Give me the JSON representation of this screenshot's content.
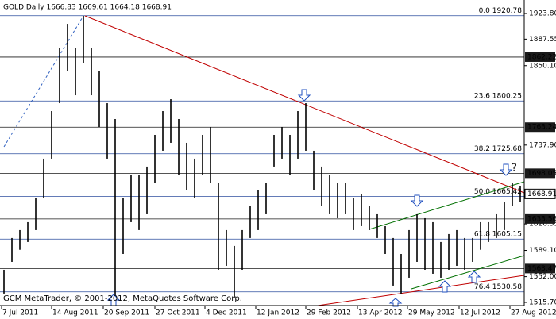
{
  "chart_data": {
    "type": "hlc_bars",
    "title": "GOLD,Daily  1666.83 1669.61 1664.18 1668.91",
    "footer": "GCM MetaTrader, © 2001-2012, MetaQuotes Software Corp.",
    "annotation": "?",
    "color": "#000000",
    "highs": [
      1561.7,
      1606.6,
      1617.8,
      1629,
      1662.6,
      1718.7,
      1785.9,
      1875.6,
      1909.2,
      1875.6,
      1920.4,
      1875.6,
      1842,
      1797.1,
      1774.7,
      1662.6,
      1696.2,
      1696.2,
      1707.5,
      1752.3,
      1785.9,
      1802.7,
      1774.7,
      1741.1,
      1718.7,
      1752.3,
      1763.5,
      1685,
      1617.8,
      1595.4,
      1617.8,
      1651.4,
      1673.8,
      1685,
      1752.3,
      1763.5,
      1752.3,
      1785.9,
      1797.1,
      1729.9,
      1707.5,
      1696.2,
      1685,
      1685,
      1662.6,
      1668.2,
      1651.4,
      1640.2,
      1623.4,
      1606.6,
      1584.1,
      1617.8,
      1640.2,
      1634.6,
      1629,
      1601,
      1612.2,
      1617.8,
      1606.6,
      1606.6,
      1629,
      1629,
      1640.2,
      1657,
      1685,
      1679.4
    ],
    "lows": [
      1528.1,
      1572.9,
      1590,
      1601,
      1617.8,
      1662.6,
      1718.7,
      1797.1,
      1842,
      1808.3,
      1853.2,
      1808.3,
      1763.5,
      1718.7,
      1522.5,
      1584.1,
      1629,
      1617.8,
      1640.2,
      1685,
      1729.9,
      1741.1,
      1696.2,
      1673.8,
      1662.6,
      1696.2,
      1685,
      1561.7,
      1567.3,
      1522.5,
      1561.7,
      1606.6,
      1617.8,
      1640.2,
      1707.5,
      1718.7,
      1696.2,
      1718.7,
      1729.9,
      1673.8,
      1651.4,
      1640.2,
      1634.6,
      1640.2,
      1617.8,
      1623.4,
      1617.8,
      1606.6,
      1584.1,
      1539.3,
      1528.1,
      1550.5,
      1572.9,
      1561.7,
      1556.1,
      1550.5,
      1561.7,
      1567.3,
      1561.7,
      1572.9,
      1590,
      1601,
      1606.6,
      1617.8,
      1651.4,
      1657
    ],
    "last": 1668.91,
    "levels": [
      1862.22,
      1763.24,
      1698.05,
      1633.56,
      1563.47
    ],
    "level_color": "#1a1a1a",
    "fib_color": "#2f4f9f",
    "fib_levels": [
      {
        "value": 1920.78,
        "label": "0.0 1920.78"
      },
      {
        "value": 1800.25,
        "label": "23.6 1800.25"
      },
      {
        "value": 1725.68,
        "label": "38.2 1725.68"
      },
      {
        "value": 1665.42,
        "label": "50.0 1665.42"
      },
      {
        "value": 1605.15,
        "label": "61.8 1605.15"
      },
      {
        "value": 1530.58,
        "label": "76.4 1530.58"
      }
    ],
    "xlim": [
      -0.5,
      65.5
    ],
    "xticks": [
      {
        "value": -0.3,
        "label": "7 Jul 2011"
      },
      {
        "value": 6,
        "label": "14 Aug 2011"
      },
      {
        "value": 12.5,
        "label": "20 Sep 2011"
      },
      {
        "value": 19,
        "label": "27 Oct 2011"
      },
      {
        "value": 25.3,
        "label": "4 Dec 2011"
      },
      {
        "value": 31.7,
        "label": "12 Jan 2012"
      },
      {
        "value": 38,
        "label": "29 Feb 2012"
      },
      {
        "value": 44.5,
        "label": "13 Apr 2012"
      },
      {
        "value": 50.8,
        "label": "29 May 2012"
      },
      {
        "value": 57.3,
        "label": "12 Jul 2012"
      },
      {
        "value": 63.7,
        "label": "27 Aug 2012"
      }
    ],
    "ylim": [
      1511.2,
      1942.9
    ],
    "yticks": [
      {
        "value": 1923.8,
        "label": "1923.80"
      },
      {
        "value": 1887.55,
        "label": "1887.55"
      },
      {
        "value": 1850.1,
        "label": "1850.10"
      },
      {
        "value": 1737.9,
        "label": "1737.90"
      },
      {
        "value": 1626.55,
        "label": "1626.55"
      },
      {
        "value": 1589.1,
        "label": "1589.10"
      },
      {
        "value": 1552,
        "label": "1552.00"
      },
      {
        "value": 1515.7,
        "label": "1515.70"
      }
    ]
  }
}
